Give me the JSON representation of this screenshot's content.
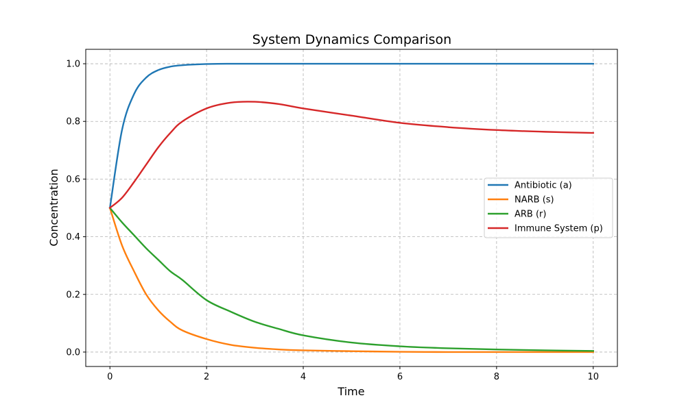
{
  "chart_data": {
    "type": "line",
    "title": "System Dynamics Comparison",
    "xlabel": "Time",
    "ylabel": "Concentration",
    "xlim": [
      -0.5,
      10.5
    ],
    "ylim": [
      -0.05,
      1.05
    ],
    "xticks": [
      0,
      2,
      4,
      6,
      8,
      10
    ],
    "yticks": [
      0.0,
      0.2,
      0.4,
      0.6,
      0.8,
      1.0
    ],
    "xtick_labels": [
      "0",
      "2",
      "4",
      "6",
      "8",
      "10"
    ],
    "ytick_labels": [
      "0.0",
      "0.2",
      "0.4",
      "0.6",
      "0.8",
      "1.0"
    ],
    "grid": true,
    "legend_position": "center-right",
    "x": [
      0,
      0.25,
      0.5,
      0.75,
      1,
      1.25,
      1.5,
      2,
      2.5,
      3,
      3.5,
      4,
      5,
      6,
      7,
      8,
      9,
      10
    ],
    "series": [
      {
        "name": "Antibiotic (a)",
        "color": "#1f77b4",
        "values": [
          0.5,
          0.77,
          0.895,
          0.952,
          0.978,
          0.99,
          0.995,
          0.999,
          1.0,
          1.0,
          1.0,
          1.0,
          1.0,
          1.0,
          1.0,
          1.0,
          1.0,
          1.0
        ]
      },
      {
        "name": "NARB (s)",
        "color": "#ff7f0e",
        "values": [
          0.5,
          0.37,
          0.28,
          0.2,
          0.145,
          0.105,
          0.075,
          0.045,
          0.025,
          0.015,
          0.009,
          0.006,
          0.003,
          0.001,
          0.0,
          0.0,
          0.0,
          0.0
        ]
      },
      {
        "name": "ARB (r)",
        "color": "#2ca02c",
        "values": [
          0.5,
          0.45,
          0.405,
          0.36,
          0.32,
          0.28,
          0.25,
          0.18,
          0.14,
          0.105,
          0.08,
          0.058,
          0.033,
          0.02,
          0.013,
          0.009,
          0.006,
          0.004
        ]
      },
      {
        "name": "Immune System (p)",
        "color": "#d62728",
        "values": [
          0.5,
          0.535,
          0.59,
          0.65,
          0.71,
          0.76,
          0.8,
          0.845,
          0.865,
          0.868,
          0.86,
          0.845,
          0.82,
          0.795,
          0.78,
          0.77,
          0.764,
          0.76
        ]
      }
    ]
  }
}
